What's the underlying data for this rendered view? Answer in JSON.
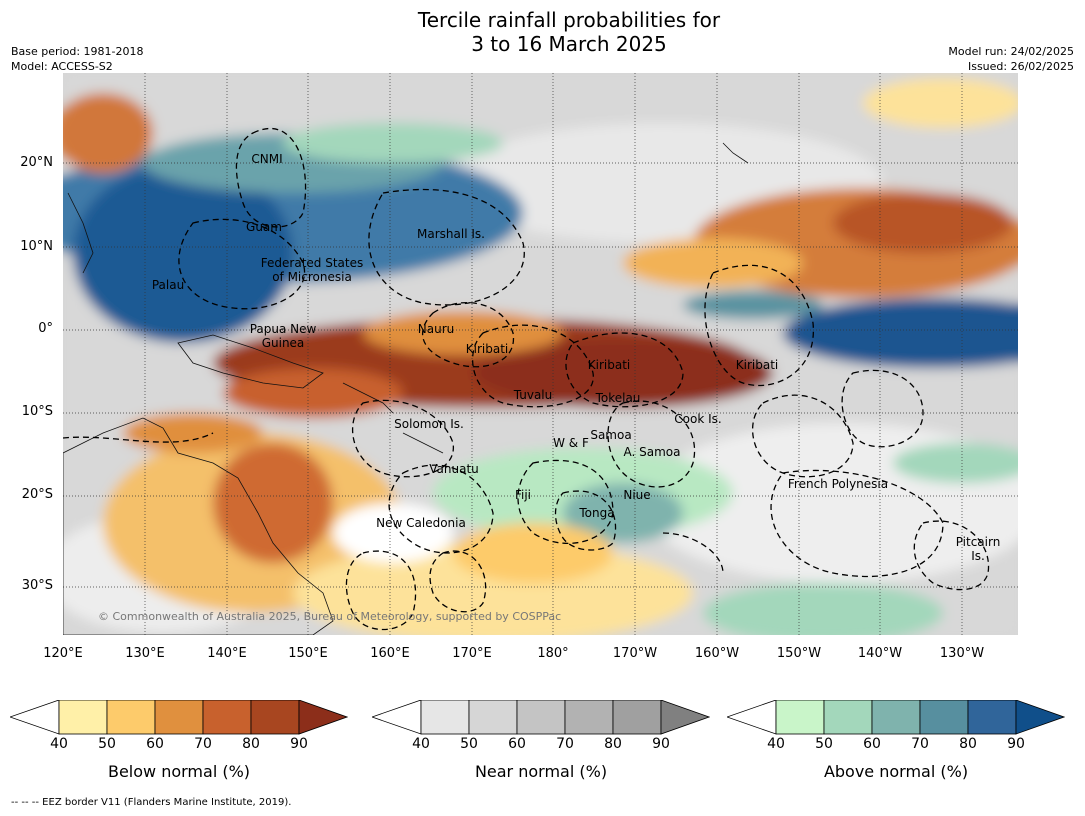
{
  "title_line1": "Tercile rainfall probabilities for",
  "title_line2": "3 to 16 March 2025",
  "meta_left": [
    "Base period: 1981-2018",
    "Model: ACCESS-S2"
  ],
  "meta_right": [
    "Model run: 24/02/2025",
    "Issued: 26/02/2025"
  ],
  "lat_labels": [
    "20°N",
    "10°N",
    "0°",
    "10°S",
    "20°S",
    "30°S"
  ],
  "lon_labels": [
    "120°E",
    "130°E",
    "140°E",
    "150°E",
    "160°E",
    "170°E",
    "180°",
    "170°W",
    "160°W",
    "150°W",
    "140°W",
    "130°W"
  ],
  "places": {
    "cnmi": "CNMI",
    "guam": "Guam",
    "marshall": "Marshall Is.",
    "fsm": "Federated States\nof Micronesia",
    "palau": "Palau",
    "png": "Papua New\nGuinea",
    "nauru": "Nauru",
    "kiribati_w": "Kiribati",
    "kiribati_c": "Kiribati",
    "kiribati_e": "Kiribati",
    "tuvalu": "Tuvalu",
    "tokelau": "Tokelau",
    "cook": "Cook Is.",
    "solomon": "Solomon Is.",
    "samoa": "Samoa",
    "wf": "W & F",
    "asamoa": "A. Samoa",
    "vanuatu": "Vanuatu",
    "fiji": "Fiji",
    "niue": "Niue",
    "tonga": "Tonga",
    "french_polynesia": "French Polynesia",
    "new_caledonia": "New Caledonia",
    "pitcairn": "Pitcairn\nIs."
  },
  "copyright": "© Commonwealth of Australia 2025, Bureau of Meteorology, supported by COSPPac",
  "legends": [
    {
      "title": "Below normal (%)",
      "colors": [
        "#fff0a8",
        "#fdcb6b",
        "#e0903e",
        "#c8612d",
        "#a84620",
        "#8c2e1a"
      ]
    },
    {
      "title": "Near normal (%)",
      "colors": [
        "#e6e6e6",
        "#d6d6d6",
        "#c4c4c4",
        "#b2b2b2",
        "#a0a0a0",
        "#808080"
      ]
    },
    {
      "title": "Above normal (%)",
      "colors": [
        "#c9f5c9",
        "#a3d7bb",
        "#7fb3ad",
        "#578f9f",
        "#30659a",
        "#104f8a"
      ]
    }
  ],
  "legend_ticks": [
    "40",
    "50",
    "60",
    "70",
    "80",
    "90"
  ],
  "footer": "-- -- -- EEZ border V11 (Flanders Marine Institute, 2019)."
}
